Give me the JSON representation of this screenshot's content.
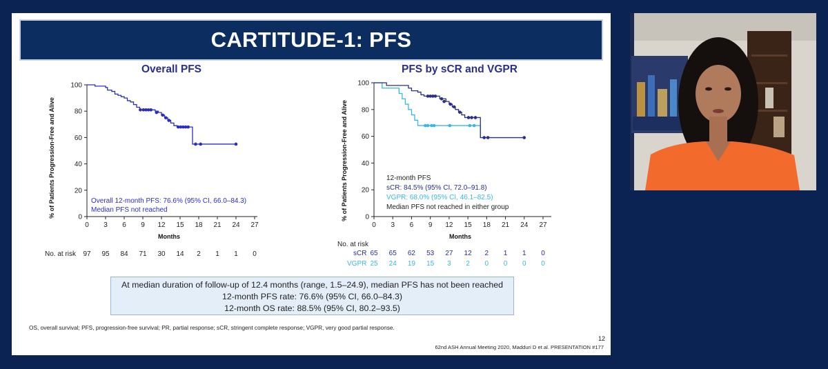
{
  "slide": {
    "title": "CARTITUDE-1: PFS",
    "left_chart": {
      "title": "Overall PFS",
      "ylabel": "% of Patients Progression-Free and Alive",
      "xlabel": "Months",
      "yticks": [
        "0",
        "20",
        "40",
        "60",
        "80",
        "100"
      ],
      "xticks": [
        "0",
        "3",
        "6",
        "9",
        "12",
        "15",
        "18",
        "21",
        "24",
        "27"
      ],
      "annotation_1": "Overall 12-month PFS: 76.6% (95% CI, 66.0–84.3)",
      "annotation_2": "Median PFS not reached",
      "risk_label": "No. at risk",
      "risk_values": [
        "97",
        "95",
        "84",
        "71",
        "30",
        "14",
        "2",
        "1",
        "1",
        "0"
      ]
    },
    "right_chart": {
      "title": "PFS by sCR and VGPR",
      "ylabel": "% of Patients Progression-Free and Alive",
      "xlabel": "Months",
      "yticks": [
        "0",
        "20",
        "40",
        "60",
        "80",
        "100"
      ],
      "xticks": [
        "0",
        "3",
        "6",
        "9",
        "12",
        "15",
        "18",
        "21",
        "24",
        "27"
      ],
      "ann_header": "12-month PFS",
      "ann_scr": "sCR: 84.5% (95% CI, 72.0–91.8)",
      "ann_vgpr": "VGPR: 68.0% (95% CI, 46.1–82.5)",
      "ann_median": "Median PFS not reached in either group",
      "risk_label": "No. at risk",
      "risk_scr_label": "sCR",
      "risk_scr_values": [
        "65",
        "65",
        "62",
        "53",
        "27",
        "12",
        "2",
        "1",
        "1",
        "0"
      ],
      "risk_vgpr_label": "VGPR",
      "risk_vgpr_values": [
        "25",
        "24",
        "19",
        "15",
        "3",
        "2",
        "0",
        "0",
        "0",
        "0"
      ]
    },
    "summary": {
      "line1": "At median duration of follow-up of 12.4 months (range, 1.5–24.9), median PFS has not been reached",
      "line2": "12-month PFS rate: 76.6% (95% CI, 66.0–84.3)",
      "line3": "12-month OS rate: 88.5% (95% CI, 80.2–93.5)"
    },
    "footnote": "OS, overall survival; PFS, progression-free survival; PR, partial response; sCR, stringent complete response; VGPR, very good partial response.",
    "page_number": "12",
    "citation": "62nd ASH Annual Meeting 2020, Madduri D et al. PRESENTATION #177"
  },
  "colors": {
    "background": "#0a2352",
    "title_bar": "#0c2d5f",
    "overall_curve": "#2a2ec0",
    "scr_curve": "#2a2e8c",
    "vgpr_curve": "#39b8e0",
    "summary_box": "#e3eef8"
  },
  "chart_data": [
    {
      "type": "line",
      "title": "Overall PFS",
      "xlabel": "Months",
      "ylabel": "% of Patients Progression-Free and Alive",
      "xlim": [
        0,
        27
      ],
      "ylim": [
        0,
        100
      ],
      "series": [
        {
          "step": [
            [
              0,
              100
            ],
            [
              1,
              100
            ],
            [
              1.3,
              99
            ],
            [
              2.5,
              99
            ],
            [
              3,
              98
            ],
            [
              3.3,
              96
            ],
            [
              4,
              95
            ],
            [
              4.5,
              93
            ],
            [
              5,
              92
            ],
            [
              5.5,
              91
            ],
            [
              6,
              90
            ],
            [
              6.5,
              88
            ],
            [
              7,
              87
            ],
            [
              7.5,
              85
            ],
            [
              8,
              83
            ],
            [
              8.5,
              81
            ],
            [
              9,
              81
            ],
            [
              10.5,
              81
            ],
            [
              11,
              80
            ],
            [
              11.5,
              79
            ],
            [
              12,
              77
            ],
            [
              12.5,
              75
            ],
            [
              13,
              73
            ],
            [
              13.5,
              71
            ],
            [
              14,
              69
            ],
            [
              14.5,
              68
            ],
            [
              16.5,
              68
            ],
            [
              17,
              55
            ],
            [
              24,
              55
            ]
          ],
          "censored": [
            [
              8.6,
              81
            ],
            [
              9.1,
              81
            ],
            [
              9.5,
              81
            ],
            [
              9.9,
              81
            ],
            [
              10.3,
              81
            ],
            [
              11.2,
              79
            ],
            [
              12.2,
              77
            ],
            [
              12.7,
              75
            ],
            [
              13.2,
              73
            ],
            [
              14.7,
              68
            ],
            [
              15.1,
              68
            ],
            [
              15.5,
              68
            ],
            [
              15.9,
              68
            ],
            [
              16.3,
              68
            ],
            [
              17.5,
              55
            ],
            [
              18.3,
              55
            ],
            [
              24,
              55
            ]
          ]
        }
      ]
    },
    {
      "type": "line",
      "title": "PFS by sCR and VGPR",
      "xlabel": "Months",
      "ylabel": "% of Patients Progression-Free and Alive",
      "xlim": [
        0,
        27
      ],
      "ylim": [
        0,
        100
      ],
      "series": [
        {
          "name": "sCR",
          "step": [
            [
              0,
              100
            ],
            [
              1.5,
              100
            ],
            [
              2,
              98
            ],
            [
              5,
              98
            ],
            [
              5.5,
              96
            ],
            [
              6,
              94
            ],
            [
              7,
              93
            ],
            [
              7.5,
              91
            ],
            [
              8,
              90
            ],
            [
              10,
              90
            ],
            [
              10.5,
              88
            ],
            [
              11.5,
              86
            ],
            [
              12,
              84
            ],
            [
              12.5,
              82
            ],
            [
              13,
              80
            ],
            [
              13.5,
              78
            ],
            [
              14,
              76
            ],
            [
              14.5,
              74
            ],
            [
              16.5,
              74
            ],
            [
              17,
              59
            ],
            [
              24,
              59
            ]
          ],
          "censored": [
            [
              8.6,
              90
            ],
            [
              9.0,
              90
            ],
            [
              9.4,
              90
            ],
            [
              9.8,
              90
            ],
            [
              10.8,
              88
            ],
            [
              11.2,
              86
            ],
            [
              12.2,
              84
            ],
            [
              12.8,
              82
            ],
            [
              13.7,
              78
            ],
            [
              15.1,
              74
            ],
            [
              15.6,
              74
            ],
            [
              16.2,
              74
            ],
            [
              17.6,
              59
            ],
            [
              18.2,
              59
            ],
            [
              24,
              59
            ]
          ]
        },
        {
          "name": "VGPR",
          "step": [
            [
              0,
              100
            ],
            [
              1,
              100
            ],
            [
              1.3,
              96
            ],
            [
              3.5,
              96
            ],
            [
              4,
              92
            ],
            [
              4.5,
              88
            ],
            [
              5,
              84
            ],
            [
              5.5,
              80
            ],
            [
              6,
              76
            ],
            [
              6.5,
              72
            ],
            [
              7,
              68
            ],
            [
              17,
              68
            ],
            [
              17,
              59
            ]
          ],
          "censored": [
            [
              8.2,
              68
            ],
            [
              8.6,
              68
            ],
            [
              9.2,
              68
            ],
            [
              9.6,
              68
            ],
            [
              12.1,
              68
            ],
            [
              15.3,
              68
            ],
            [
              16,
              68
            ]
          ]
        }
      ]
    }
  ]
}
